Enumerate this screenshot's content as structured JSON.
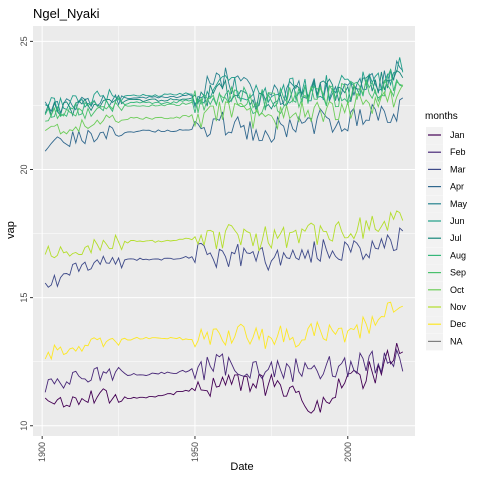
{
  "chart_data": {
    "type": "line",
    "title": "Ngel_Nyaki",
    "xlabel": "Date",
    "ylabel": "vap",
    "xlim": [
      1897,
      2022
    ],
    "ylim": [
      9.6,
      25.6
    ],
    "x_ticks": [
      1900,
      1950,
      2000
    ],
    "y_ticks": [
      10,
      15,
      20,
      25
    ],
    "grid": true,
    "legend_title": "months",
    "legend_position": "right",
    "series": [
      {
        "name": "Jan",
        "color": "#440154",
        "values": [
          [
            1901,
            10.8
          ],
          [
            1915,
            11.2
          ],
          [
            1925,
            11.1
          ],
          [
            1935,
            11.1
          ],
          [
            1945,
            11.3
          ],
          [
            1955,
            11.6
          ],
          [
            1965,
            11.7
          ],
          [
            1975,
            11.5
          ],
          [
            1985,
            11.4
          ],
          [
            1988,
            10.2
          ],
          [
            1995,
            11.5
          ],
          [
            2005,
            11.9
          ],
          [
            2010,
            12.2
          ],
          [
            2018,
            13.1
          ]
        ]
      },
      {
        "name": "Feb",
        "color": "#482878",
        "values": [
          [
            1901,
            11.5
          ],
          [
            1915,
            12.0
          ],
          [
            1925,
            12.0
          ],
          [
            1935,
            12.0
          ],
          [
            1945,
            12.1
          ],
          [
            1955,
            12.3
          ],
          [
            1965,
            12.4
          ],
          [
            1975,
            12.1
          ],
          [
            1985,
            12.2
          ],
          [
            1995,
            12.3
          ],
          [
            2005,
            12.4
          ],
          [
            2010,
            12.5
          ],
          [
            2018,
            12.6
          ]
        ]
      },
      {
        "name": "Mar",
        "color": "#3E4A89",
        "values": [
          [
            1901,
            15.4
          ],
          [
            1910,
            16.1
          ],
          [
            1920,
            16.4
          ],
          [
            1930,
            16.5
          ],
          [
            1940,
            16.5
          ],
          [
            1950,
            16.6
          ],
          [
            1960,
            16.7
          ],
          [
            1970,
            16.6
          ],
          [
            1980,
            16.5
          ],
          [
            1990,
            16.8
          ],
          [
            2000,
            16.9
          ],
          [
            2010,
            17.0
          ],
          [
            2018,
            17.3
          ]
        ]
      },
      {
        "name": "Apr",
        "color": "#31688E",
        "values": [
          [
            1901,
            20.8
          ],
          [
            1910,
            21.2
          ],
          [
            1920,
            21.4
          ],
          [
            1930,
            21.5
          ],
          [
            1940,
            21.5
          ],
          [
            1950,
            21.6
          ],
          [
            1960,
            21.8
          ],
          [
            1970,
            21.5
          ],
          [
            1980,
            21.6
          ],
          [
            1990,
            21.9
          ],
          [
            2000,
            22.0
          ],
          [
            2010,
            22.1
          ],
          [
            2018,
            22.4
          ]
        ]
      },
      {
        "name": "May",
        "color": "#26828E",
        "values": [
          [
            1901,
            22.4
          ],
          [
            1910,
            22.5
          ],
          [
            1920,
            22.7
          ],
          [
            1930,
            22.8
          ],
          [
            1940,
            22.8
          ],
          [
            1950,
            22.9
          ],
          [
            1960,
            23.6
          ],
          [
            1970,
            22.8
          ],
          [
            1980,
            23.0
          ],
          [
            1990,
            23.1
          ],
          [
            2000,
            23.2
          ],
          [
            2010,
            23.4
          ],
          [
            2018,
            24.0
          ]
        ]
      },
      {
        "name": "Jun",
        "color": "#1F9E89",
        "values": [
          [
            1901,
            22.5
          ],
          [
            1910,
            22.6
          ],
          [
            1920,
            22.8
          ],
          [
            1930,
            22.9
          ],
          [
            1940,
            22.9
          ],
          [
            1950,
            23.0
          ],
          [
            1960,
            23.3
          ],
          [
            1970,
            22.9
          ],
          [
            1980,
            23.1
          ],
          [
            1990,
            23.2
          ],
          [
            2000,
            23.3
          ],
          [
            2010,
            23.5
          ],
          [
            2018,
            24.1
          ]
        ]
      },
      {
        "name": "Jul",
        "color": "#17877A",
        "values": [
          [
            1901,
            22.3
          ],
          [
            1910,
            22.4
          ],
          [
            1920,
            22.6
          ],
          [
            1930,
            22.7
          ],
          [
            1940,
            22.7
          ],
          [
            1950,
            22.8
          ],
          [
            1960,
            23.1
          ],
          [
            1970,
            22.7
          ],
          [
            1980,
            22.9
          ],
          [
            1990,
            23.0
          ],
          [
            2000,
            23.1
          ],
          [
            2010,
            23.3
          ],
          [
            2018,
            23.8
          ]
        ]
      },
      {
        "name": "Aug",
        "color": "#35B779",
        "values": [
          [
            1901,
            22.2
          ],
          [
            1910,
            22.3
          ],
          [
            1920,
            22.5
          ],
          [
            1930,
            22.6
          ],
          [
            1940,
            22.6
          ],
          [
            1950,
            22.7
          ],
          [
            1960,
            22.9
          ],
          [
            1970,
            22.6
          ],
          [
            1980,
            22.8
          ],
          [
            1990,
            22.9
          ],
          [
            2000,
            23.0
          ],
          [
            2010,
            23.2
          ],
          [
            2018,
            23.6
          ]
        ]
      },
      {
        "name": "Sep",
        "color": "#4AC16D",
        "values": [
          [
            1901,
            22.1
          ],
          [
            1910,
            22.2
          ],
          [
            1920,
            22.4
          ],
          [
            1930,
            22.5
          ],
          [
            1940,
            22.5
          ],
          [
            1950,
            22.6
          ],
          [
            1960,
            22.8
          ],
          [
            1970,
            22.5
          ],
          [
            1980,
            22.7
          ],
          [
            1990,
            22.8
          ],
          [
            2000,
            22.9
          ],
          [
            2010,
            23.1
          ],
          [
            2018,
            23.5
          ]
        ]
      },
      {
        "name": "Oct",
        "color": "#6DCD59",
        "values": [
          [
            1901,
            21.5
          ],
          [
            1910,
            21.7
          ],
          [
            1920,
            21.9
          ],
          [
            1930,
            22.0
          ],
          [
            1940,
            22.0
          ],
          [
            1950,
            22.1
          ],
          [
            1960,
            22.2
          ],
          [
            1970,
            22.0
          ],
          [
            1980,
            22.1
          ],
          [
            1990,
            22.3
          ],
          [
            2000,
            22.4
          ],
          [
            2010,
            22.6
          ],
          [
            2018,
            23.1
          ]
        ]
      },
      {
        "name": "Nov",
        "color": "#B4DE2C",
        "values": [
          [
            1901,
            16.7
          ],
          [
            1910,
            16.9
          ],
          [
            1920,
            17.1
          ],
          [
            1930,
            17.2
          ],
          [
            1940,
            17.2
          ],
          [
            1950,
            17.3
          ],
          [
            1960,
            17.4
          ],
          [
            1970,
            17.3
          ],
          [
            1980,
            17.4
          ],
          [
            1990,
            17.5
          ],
          [
            2000,
            17.6
          ],
          [
            2010,
            17.8
          ],
          [
            2018,
            18.2
          ]
        ]
      },
      {
        "name": "Dec",
        "color": "#FDE725",
        "values": [
          [
            1901,
            12.8
          ],
          [
            1910,
            13.1
          ],
          [
            1920,
            13.3
          ],
          [
            1930,
            13.4
          ],
          [
            1940,
            13.4
          ],
          [
            1950,
            13.4
          ],
          [
            1960,
            13.6
          ],
          [
            1970,
            13.5
          ],
          [
            1980,
            13.5
          ],
          [
            1990,
            13.6
          ],
          [
            2000,
            13.7
          ],
          [
            2010,
            14.0
          ],
          [
            2018,
            14.9
          ]
        ]
      },
      {
        "name": "NA",
        "color": "#7F7F7F",
        "values": []
      }
    ]
  }
}
